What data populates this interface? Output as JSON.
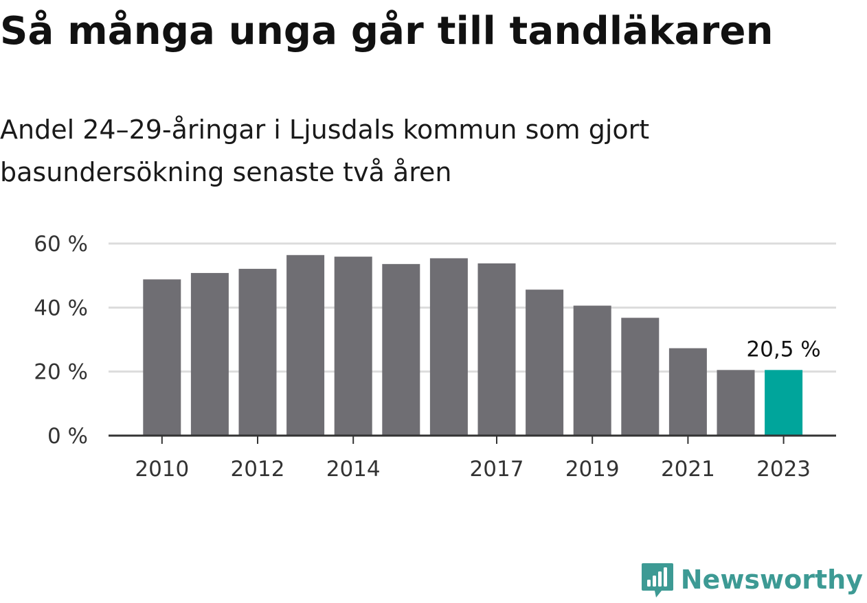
{
  "header": {
    "title": "Så många unga går till tandläkaren",
    "subtitle": "Andel 24–29-åringar i Ljusdals kommun som gjort basundersökning senaste två åren"
  },
  "brand": {
    "name": "Newsworthy",
    "icon": "bar-chart-speech-bubble-icon",
    "color": "#3d9a94"
  },
  "chart_data": {
    "type": "bar",
    "title": "Så många unga går till tandläkaren",
    "subtitle": "Andel 24–29-åringar i Ljusdals kommun som gjort basundersökning senaste två åren",
    "xlabel": "",
    "ylabel": "",
    "categories": [
      "2010",
      "2011",
      "2012",
      "2013",
      "2014",
      "2015",
      "2016",
      "2017",
      "2018",
      "2019",
      "2020",
      "2021",
      "2022",
      "2023"
    ],
    "values": [
      48.8,
      50.8,
      52.1,
      56.4,
      55.9,
      53.6,
      55.4,
      53.8,
      45.6,
      40.6,
      36.8,
      27.3,
      20.5,
      20.5
    ],
    "x_tick_labels": [
      "2010",
      "2012",
      "2014",
      "2017",
      "2019",
      "2021",
      "2023"
    ],
    "y_ticks": [
      0,
      20,
      40,
      60
    ],
    "y_tick_labels": [
      "0 %",
      "20 %",
      "40 %",
      "60 %"
    ],
    "ylim": [
      0,
      60
    ],
    "grid": true,
    "bar_color": "#6f6e73",
    "highlight_color": "#00a59b",
    "highlight_category": "2023",
    "annotation": {
      "category": "2023",
      "text": "20,5 %"
    }
  }
}
